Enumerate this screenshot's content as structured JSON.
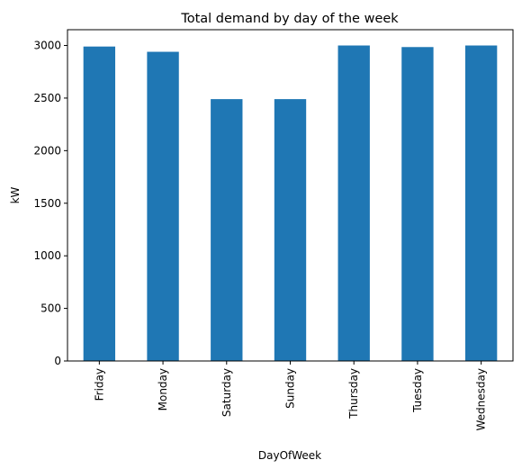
{
  "chart_data": {
    "type": "bar",
    "title": "Total demand by day of the week",
    "xlabel": "DayOfWeek",
    "ylabel": "kW",
    "categories": [
      "Friday",
      "Monday",
      "Saturday",
      "Sunday",
      "Thursday",
      "Tuesday",
      "Wednesday"
    ],
    "values": [
      2990,
      2940,
      2490,
      2490,
      3000,
      2985,
      3000
    ],
    "ylim": [
      0,
      3150
    ],
    "yticks": [
      "0",
      "500",
      "1000",
      "1500",
      "2000",
      "2500",
      "3000"
    ],
    "grid": false,
    "legend": "none",
    "bar_color": "#1f77b4"
  }
}
